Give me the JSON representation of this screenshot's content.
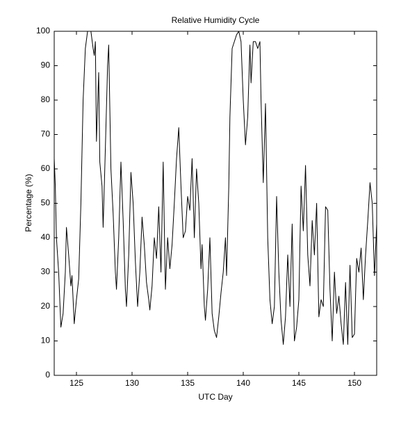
{
  "chart_data": {
    "type": "line",
    "title": "Relative Humidity Cycle",
    "x_label": "UTC Day",
    "y_label": "Percentage (%)",
    "xlim": [
      123,
      152
    ],
    "ylim": [
      0,
      100
    ],
    "xticks": [
      125,
      130,
      135,
      140,
      145,
      150
    ],
    "yticks": [
      0,
      10,
      20,
      30,
      40,
      50,
      60,
      70,
      80,
      90,
      100
    ],
    "x": [
      123,
      123.1,
      123.2,
      123.4,
      123.6,
      123.8,
      124,
      124.1,
      124.3,
      124.5,
      124.6,
      124.8,
      125,
      125.2,
      125.4,
      125.6,
      125.8,
      126,
      126.3,
      126.5,
      126.6,
      126.7,
      126.8,
      127,
      127.1,
      127.3,
      127.4,
      127.6,
      127.8,
      127.9,
      128.1,
      128.3,
      128.5,
      128.6,
      128.8,
      129,
      129.2,
      129.4,
      129.5,
      129.7,
      129.9,
      130.1,
      130.3,
      130.5,
      130.7,
      130.9,
      131.1,
      131.3,
      131.5,
      131.6,
      131.8,
      132,
      132.2,
      132.4,
      132.6,
      132.8,
      133,
      133.2,
      133.4,
      133.6,
      133.8,
      134,
      134.2,
      134.4,
      134.6,
      134.8,
      135,
      135.2,
      135.4,
      135.6,
      135.8,
      136,
      136.2,
      136.3,
      136.5,
      136.6,
      136.8,
      137,
      137.2,
      137.4,
      137.6,
      137.8,
      138,
      138.2,
      138.4,
      138.5,
      138.7,
      138.8,
      139,
      139.2,
      139.4,
      139.6,
      139.8,
      140,
      140.2,
      140.4,
      140.6,
      140.7,
      140.9,
      141.1,
      141.3,
      141.5,
      141.6,
      141.8,
      142,
      142.2,
      142.4,
      142.6,
      142.8,
      143,
      143.2,
      143.4,
      143.6,
      143.8,
      144,
      144.2,
      144.4,
      144.6,
      144.8,
      145,
      145.2,
      145.4,
      145.6,
      145.8,
      146,
      146.2,
      146.4,
      146.6,
      146.8,
      147,
      147.2,
      147.4,
      147.6,
      147.8,
      148,
      148.2,
      148.4,
      148.6,
      148.8,
      149,
      149.2,
      149.4,
      149.6,
      149.8,
      150,
      150.2,
      150.4,
      150.6,
      150.8,
      151,
      151.2,
      151.4,
      151.6,
      151.8,
      152
    ],
    "series": [
      {
        "color": "#000000",
        "values": [
          63,
          55,
          40,
          30,
          14,
          18,
          30,
          43,
          35,
          26,
          29,
          15,
          22,
          28,
          50,
          80,
          95,
          100,
          100,
          95,
          93,
          97,
          68,
          88,
          62,
          55,
          43,
          66,
          90,
          96,
          60,
          47,
          30,
          25,
          40,
          62,
          45,
          25,
          20,
          35,
          59,
          50,
          33,
          20,
          30,
          46,
          38,
          27,
          22,
          19,
          26,
          40,
          34,
          49,
          30,
          62,
          25,
          40,
          31,
          38,
          50,
          63,
          72,
          55,
          40,
          42,
          52,
          48,
          63,
          40,
          60,
          50,
          31,
          38,
          20,
          16,
          25,
          40,
          18,
          13,
          11,
          17,
          24,
          30,
          40,
          29,
          55,
          75,
          95,
          97,
          99,
          100,
          97,
          80,
          67,
          75,
          96,
          85,
          97,
          97,
          95,
          97,
          80,
          56,
          79,
          40,
          22,
          15,
          20,
          52,
          30,
          16,
          9,
          17,
          35,
          20,
          44,
          10,
          14,
          22,
          55,
          42,
          61,
          35,
          26,
          45,
          35,
          50,
          17,
          22,
          20,
          49,
          48,
          25,
          10,
          30,
          18,
          23,
          15,
          9,
          27,
          9,
          32,
          11,
          12,
          34,
          30,
          37,
          22,
          35,
          45,
          56,
          50,
          29,
          44
        ]
      }
    ]
  }
}
